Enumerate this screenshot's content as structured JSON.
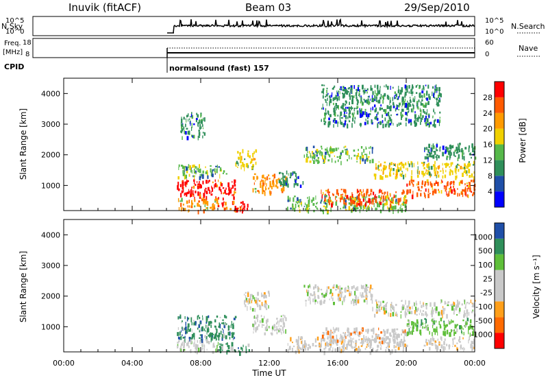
{
  "header": {
    "station": "Inuvik (fitACF)",
    "beam": "Beam 03",
    "date": "29/Sep/2010"
  },
  "panels": {
    "nsky": {
      "label": "N.Sky",
      "left_ticks": [
        "10^5",
        "10^0"
      ],
      "right_ticks": [
        "10^5",
        "10^0"
      ],
      "right_label": "N.Search"
    },
    "freq": {
      "label_line1": "Freq.",
      "label_line2": "[MHz]",
      "left_ticks": [
        "18",
        "8"
      ],
      "right_ticks": [
        "60",
        "0"
      ],
      "right_label": "Nave"
    },
    "cpid": {
      "label": "CPID",
      "mode_text": "normalsound (fast) 157"
    }
  },
  "colors": {
    "power": [
      "#0000ff",
      "#1f4fa8",
      "#2f8f5a",
      "#56b84a",
      "#f0d000",
      "#ff9a00",
      "#ff5a00",
      "#ff0000"
    ],
    "velocity": [
      "#ff0000",
      "#ff6a00",
      "#ff9f1a",
      "#c9c9c9",
      "#c9c9c9",
      "#5fbf3a",
      "#2f8f5a",
      "#1f4fa8"
    ]
  },
  "chart_data": [
    {
      "type": "heatmap",
      "name": "power",
      "ylabel": "Slant Range [km]",
      "yticks": [
        "1000",
        "2000",
        "3000",
        "4000"
      ],
      "ylim": [
        180,
        4500
      ],
      "colorbar_label": "Power [dB]",
      "colorbar_ticks": [
        "4",
        "8",
        "12",
        "16",
        "20",
        "24",
        "28"
      ],
      "colorbar_range": [
        0,
        32
      ],
      "x_hours_range": [
        0,
        24
      ],
      "cells": [
        {
          "x": [
            6.6,
            10.0
          ],
          "y": [
            600,
            1200
          ],
          "v": 28
        },
        {
          "x": [
            6.6,
            9.0
          ],
          "y": [
            200,
            600
          ],
          "v": 20
        },
        {
          "x": [
            9.0,
            10.8
          ],
          "y": [
            200,
            500
          ],
          "v": 28
        },
        {
          "x": [
            6.6,
            9.5
          ],
          "y": [
            1300,
            1700
          ],
          "v": 12
        },
        {
          "x": [
            6.8,
            8.2
          ],
          "y": [
            2600,
            3400
          ],
          "v": 8
        },
        {
          "x": [
            10.0,
            11.2
          ],
          "y": [
            1600,
            2200
          ],
          "v": 16
        },
        {
          "x": [
            11.0,
            13.0
          ],
          "y": [
            800,
            1400
          ],
          "v": 20
        },
        {
          "x": [
            12.5,
            14.0
          ],
          "y": [
            1000,
            1500
          ],
          "v": 8
        },
        {
          "x": [
            13.0,
            20.0
          ],
          "y": [
            200,
            700
          ],
          "v": 12
        },
        {
          "x": [
            15.0,
            20.0
          ],
          "y": [
            400,
            900
          ],
          "v": 24
        },
        {
          "x": [
            14.0,
            18.0
          ],
          "y": [
            1800,
            2300
          ],
          "v": 12
        },
        {
          "x": [
            18.0,
            24.0
          ],
          "y": [
            1300,
            1800
          ],
          "v": 16
        },
        {
          "x": [
            20.0,
            24.0
          ],
          "y": [
            700,
            1200
          ],
          "v": 24
        },
        {
          "x": [
            21.0,
            24.0
          ],
          "y": [
            1900,
            2400
          ],
          "v": 8
        },
        {
          "x": [
            15.0,
            22.0
          ],
          "y": [
            3000,
            4300
          ],
          "v": 8
        }
      ]
    },
    {
      "type": "heatmap",
      "name": "velocity",
      "ylabel": "Slant Range [km]",
      "yticks": [
        "1000",
        "2000",
        "3000",
        "4000"
      ],
      "ylim": [
        180,
        4500
      ],
      "colorbar_label": "Velocity [m s⁻¹]",
      "colorbar_ticks": [
        "-1000",
        "-500",
        "-100",
        "-25",
        "25",
        "100",
        "500",
        "1000"
      ],
      "colorbar_range": [
        -1200,
        1200
      ],
      "x_hours_range": [
        0,
        24
      ],
      "cells": [
        {
          "x": [
            6.6,
            10.0
          ],
          "y": [
            600,
            1400
          ],
          "v": 600
        },
        {
          "x": [
            6.6,
            9.0
          ],
          "y": [
            200,
            600
          ],
          "v": 200
        },
        {
          "x": [
            9.0,
            10.8
          ],
          "y": [
            200,
            500
          ],
          "v": 600
        },
        {
          "x": [
            10.5,
            12.0
          ],
          "y": [
            1600,
            2200
          ],
          "v": 0
        },
        {
          "x": [
            11.0,
            13.0
          ],
          "y": [
            800,
            1400
          ],
          "v": 200
        },
        {
          "x": [
            13.0,
            20.0
          ],
          "y": [
            200,
            700
          ],
          "v": -200
        },
        {
          "x": [
            15.0,
            20.0
          ],
          "y": [
            500,
            1000
          ],
          "v": -300
        },
        {
          "x": [
            14.0,
            18.0
          ],
          "y": [
            1800,
            2400
          ],
          "v": 0
        },
        {
          "x": [
            18.0,
            24.0
          ],
          "y": [
            1400,
            1900
          ],
          "v": 0
        },
        {
          "x": [
            20.0,
            24.0
          ],
          "y": [
            800,
            1300
          ],
          "v": 300
        },
        {
          "x": [
            21.0,
            24.0
          ],
          "y": [
            300,
            700
          ],
          "v": -200
        }
      ]
    }
  ],
  "xaxis": {
    "label": "Time UT",
    "ticks": [
      "00:00",
      "04:00",
      "08:00",
      "12:00",
      "16:00",
      "20:00",
      "00:00"
    ]
  }
}
